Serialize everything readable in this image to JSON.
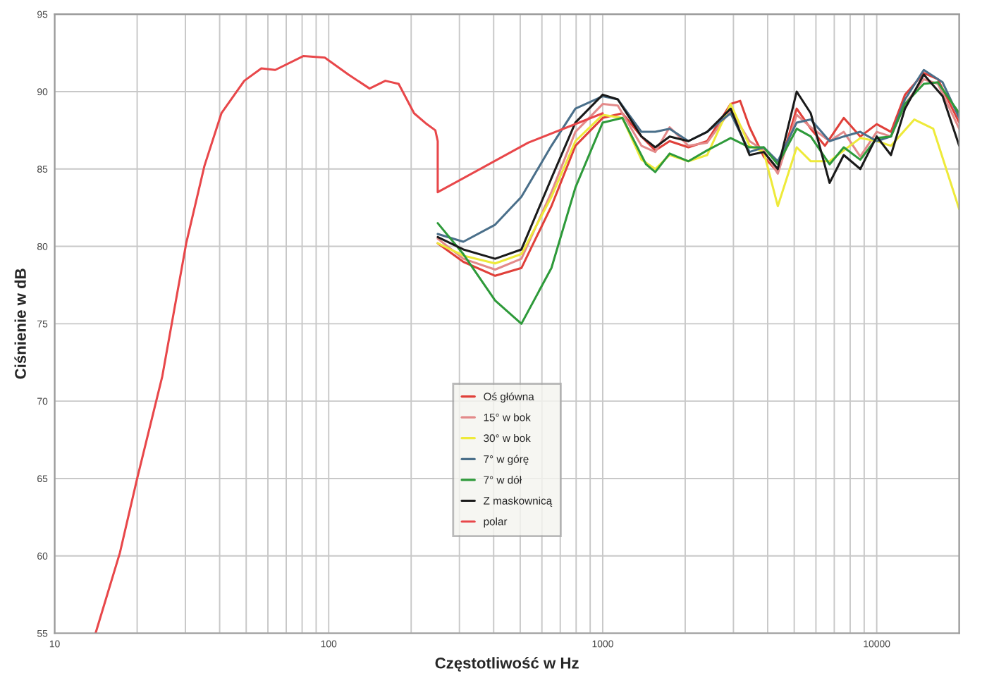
{
  "chart_data": {
    "type": "line",
    "xlabel": "Częstotliwość w Hz",
    "ylabel": "Ciśnienie w dB",
    "log": "x",
    "xlim": [
      10,
      20000
    ],
    "xticks": [
      10,
      100,
      1000,
      10000
    ],
    "ylim": [
      55,
      95
    ],
    "yticks": [
      55,
      60,
      65,
      70,
      75,
      80,
      85,
      90,
      95
    ],
    "grid": true,
    "legend": "center",
    "line_style": "solid",
    "marker": "none",
    "series": [
      {
        "name": "Oś główna",
        "color": "#e0403a",
        "x": [
          250,
          310,
          405,
          505,
          650,
          795,
          1000,
          1180,
          1385,
          1555,
          1755,
          2055,
          2405,
          2930,
          3175,
          3435,
          3870,
          4355,
          5105,
          5745,
          6470,
          7580,
          8710,
          10000,
          11270,
          12680,
          14850,
          16720,
          20000
        ],
        "values": [
          80.2,
          79.0,
          78.1,
          78.6,
          82.6,
          86.5,
          88.3,
          88.6,
          87.1,
          86.2,
          86.8,
          86.4,
          86.8,
          89.2,
          89.4,
          87.7,
          85.8,
          84.8,
          88.9,
          87.6,
          86.5,
          88.3,
          87.1,
          87.9,
          87.4,
          89.8,
          91.2,
          90.8,
          88.0
        ]
      },
      {
        "name": "15° w bok",
        "color": "#e38a8a",
        "x": [
          250,
          310,
          405,
          505,
          650,
          795,
          1000,
          1135,
          1385,
          1555,
          1755,
          2055,
          2405,
          2930,
          3435,
          3870,
          4355,
          5105,
          5745,
          6730,
          7580,
          8710,
          10000,
          11270,
          12680,
          14850,
          16720,
          20000
        ],
        "values": [
          80.5,
          79.2,
          78.5,
          79.2,
          83.5,
          87.4,
          89.2,
          89.1,
          86.5,
          86.1,
          87.7,
          86.5,
          86.7,
          88.8,
          86.8,
          86.2,
          84.7,
          88.5,
          87.7,
          86.8,
          87.4,
          85.8,
          87.4,
          87.1,
          89.2,
          90.8,
          90.5,
          87.6
        ]
      },
      {
        "name": "30° w bok",
        "color": "#eeea3a",
        "x": [
          250,
          310,
          405,
          505,
          650,
          795,
          1000,
          1180,
          1385,
          1555,
          1755,
          2055,
          2405,
          2930,
          3435,
          3870,
          4355,
          5105,
          5745,
          6730,
          7580,
          8710,
          10000,
          11270,
          13720,
          16080,
          20000
        ],
        "values": [
          80.2,
          79.4,
          78.9,
          79.5,
          83.2,
          86.8,
          88.5,
          88.3,
          85.6,
          85.0,
          85.9,
          85.5,
          85.9,
          89.2,
          86.5,
          86.1,
          82.6,
          86.4,
          85.5,
          85.5,
          86.2,
          87.0,
          86.8,
          86.5,
          88.2,
          87.6,
          82.4
        ]
      },
      {
        "name": "7° w górę",
        "color": "#4a6f8a",
        "x": [
          250,
          310,
          405,
          505,
          650,
          795,
          1000,
          1135,
          1385,
          1555,
          1755,
          2055,
          2405,
          2930,
          3435,
          3870,
          4355,
          5105,
          5745,
          6730,
          7580,
          8710,
          10000,
          11270,
          12680,
          14850,
          17400,
          20000
        ],
        "values": [
          80.8,
          80.3,
          81.4,
          83.2,
          86.5,
          88.9,
          89.7,
          89.5,
          87.4,
          87.4,
          87.6,
          86.8,
          87.4,
          88.6,
          86.1,
          86.4,
          85.5,
          88.0,
          88.2,
          86.8,
          87.1,
          87.4,
          86.8,
          87.1,
          89.5,
          91.4,
          90.6,
          88.3
        ]
      },
      {
        "name": "7° w dół",
        "color": "#2e9a3a",
        "x": [
          250,
          310,
          405,
          505,
          650,
          795,
          1000,
          1180,
          1440,
          1555,
          1755,
          2055,
          2405,
          2930,
          3435,
          3870,
          4355,
          5105,
          5745,
          6730,
          7580,
          8710,
          10000,
          11270,
          12680,
          14850,
          16720,
          20000
        ],
        "values": [
          81.5,
          79.5,
          76.5,
          75.0,
          78.6,
          83.8,
          88.0,
          88.3,
          85.3,
          84.8,
          86.0,
          85.5,
          86.2,
          87.0,
          86.4,
          86.4,
          85.3,
          87.6,
          87.1,
          85.3,
          86.4,
          85.6,
          87.0,
          87.1,
          89.2,
          90.5,
          90.6,
          88.6
        ]
      },
      {
        "name": "Z maskownicą",
        "color": "#1a1a1a",
        "x": [
          250,
          310,
          405,
          505,
          650,
          795,
          1000,
          1135,
          1385,
          1555,
          1755,
          2055,
          2405,
          2930,
          3435,
          3870,
          4355,
          5105,
          5745,
          6730,
          7580,
          8710,
          10000,
          11270,
          12680,
          14850,
          17400,
          20000
        ],
        "values": [
          80.6,
          79.8,
          79.2,
          79.8,
          84.4,
          88.0,
          89.8,
          89.5,
          87.1,
          86.4,
          87.1,
          86.8,
          87.4,
          88.9,
          85.9,
          86.1,
          85.0,
          90.0,
          88.6,
          84.1,
          85.9,
          85.0,
          87.1,
          85.9,
          88.9,
          91.1,
          89.7,
          86.5
        ]
      },
      {
        "name": "polar",
        "color": "#e8474a",
        "x": [
          14.1,
          17.3,
          20,
          24.7,
          30.2,
          35.2,
          40.6,
          49.2,
          56.8,
          63.8,
          81,
          96.8,
          118,
          141,
          161,
          180,
          205,
          228,
          245,
          250,
          250,
          535,
          1000
        ],
        "values": [
          55.0,
          60.2,
          65.0,
          71.6,
          80.2,
          85.2,
          88.6,
          90.7,
          91.5,
          91.4,
          92.3,
          92.2,
          91.1,
          90.2,
          90.7,
          90.5,
          88.6,
          87.9,
          87.5,
          86.8,
          83.5,
          86.7,
          88.6
        ]
      }
    ]
  }
}
